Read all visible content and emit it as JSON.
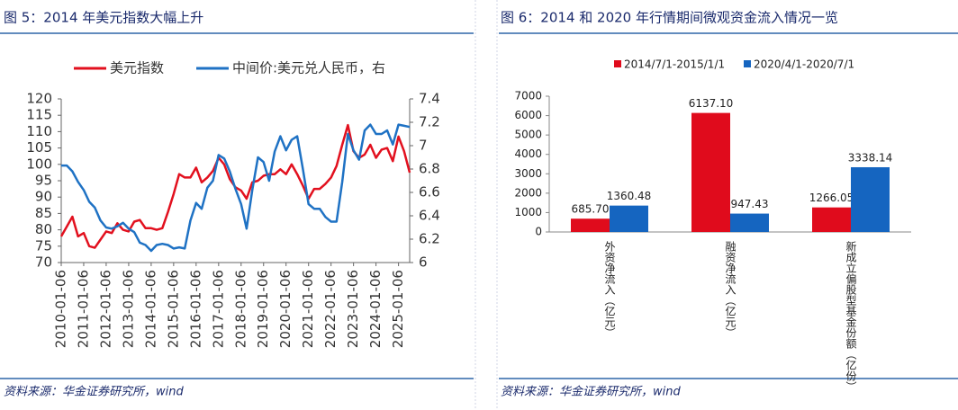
{
  "chart_data": [
    {
      "type": "line",
      "title": "图 5：2014 年美元指数大幅上升",
      "source": "资料来源：华金证券研究所，wind",
      "x": [
        "2010-01-06",
        "2010-04-06",
        "2010-07-06",
        "2010-10-06",
        "2011-01-06",
        "2011-04-06",
        "2011-07-06",
        "2011-10-06",
        "2012-01-06",
        "2012-04-06",
        "2012-07-06",
        "2012-10-06",
        "2013-01-06",
        "2013-04-06",
        "2013-07-06",
        "2013-10-06",
        "2014-01-06",
        "2014-04-06",
        "2014-07-06",
        "2014-10-06",
        "2015-01-06",
        "2015-04-06",
        "2015-07-06",
        "2015-10-06",
        "2016-01-06",
        "2016-04-06",
        "2016-07-06",
        "2016-10-06",
        "2017-01-06",
        "2017-04-06",
        "2017-07-06",
        "2017-10-06",
        "2018-01-06",
        "2018-04-06",
        "2018-07-06",
        "2018-10-06",
        "2019-01-06",
        "2019-04-06",
        "2019-07-06",
        "2019-10-06",
        "2020-01-06",
        "2020-04-06",
        "2020-07-06",
        "2020-10-06",
        "2021-01-06",
        "2021-04-06",
        "2021-07-06",
        "2021-10-06",
        "2022-01-06",
        "2022-04-06",
        "2022-07-06",
        "2022-10-06",
        "2023-01-06",
        "2023-04-06",
        "2023-07-06",
        "2023-10-06",
        "2024-01-06",
        "2024-04-06",
        "2024-07-06",
        "2024-10-06",
        "2025-01-06",
        "2025-04-06",
        "2025-07-06"
      ],
      "series": [
        {
          "name": "美元指数",
          "color": "#e2101e",
          "values": [
            78,
            81,
            84,
            78,
            79,
            75,
            74.5,
            77,
            79.5,
            79,
            82,
            80,
            79.5,
            82.5,
            83,
            80.5,
            80.5,
            80,
            80.5,
            85.5,
            91,
            97,
            96,
            96,
            99,
            94.5,
            96,
            98,
            102,
            100,
            95.5,
            93,
            92,
            89.5,
            94.5,
            95,
            96.5,
            97,
            97,
            98.5,
            97,
            100,
            97,
            93.5,
            89.5,
            92.5,
            92.5,
            94,
            96,
            99.5,
            106,
            112,
            104,
            102,
            103,
            106,
            102,
            104.5,
            105,
            101,
            108.5,
            104,
            97.5
          ]
        },
        {
          "name": "中间价:美元兑人民币，右",
          "color": "#1f72c4",
          "axis": "y2",
          "values": [
            6.83,
            6.83,
            6.78,
            6.69,
            6.62,
            6.52,
            6.47,
            6.36,
            6.3,
            6.29,
            6.31,
            6.34,
            6.29,
            6.26,
            6.17,
            6.15,
            6.1,
            6.15,
            6.16,
            6.15,
            6.12,
            6.13,
            6.12,
            6.36,
            6.51,
            6.46,
            6.64,
            6.7,
            6.92,
            6.89,
            6.78,
            6.63,
            6.5,
            6.29,
            6.62,
            6.9,
            6.86,
            6.7,
            6.95,
            7.08,
            6.96,
            7.05,
            7.08,
            6.8,
            6.5,
            6.46,
            6.46,
            6.39,
            6.35,
            6.35,
            6.69,
            7.1,
            6.96,
            6.88,
            7.13,
            7.18,
            7.1,
            7.1,
            7.13,
            7.01,
            7.18,
            7.17,
            7.16
          ]
        }
      ],
      "xlim": [
        "2010-01-06",
        "2025-07-06"
      ],
      "xticks": [
        "2010-01-06",
        "2011-01-06",
        "2012-01-06",
        "2013-01-06",
        "2014-01-06",
        "2015-01-06",
        "2016-01-06",
        "2017-01-06",
        "2018-01-06",
        "2019-01-06",
        "2020-01-06",
        "2021-01-06",
        "2022-01-06",
        "2023-01-06",
        "2024-01-06",
        "2025-01-06"
      ],
      "ylim": [
        70,
        120
      ],
      "yticks": [
        70,
        75,
        80,
        85,
        90,
        95,
        100,
        105,
        110,
        115,
        120
      ],
      "y2lim": [
        6,
        7.4
      ],
      "y2ticks": [
        6,
        6.2,
        6.4,
        6.6,
        6.8,
        7,
        7.2,
        7.4
      ],
      "legend": "top"
    },
    {
      "type": "bar",
      "title": "图 6：2014 和 2020 年行情期间微观资金流入情况一览",
      "source": "资料来源：华金证券研究所，wind",
      "categories": [
        "外资净流入（亿元）",
        "融资净流入（亿元）",
        "新成立偏股型基金份额（亿份）"
      ],
      "series": [
        {
          "name": "2014/7/1-2015/1/1",
          "color": "#e00b1c",
          "values": [
            685.7,
            6137.1,
            1266.05
          ],
          "value_labels": [
            "685.70",
            "6137.10",
            "1266.05"
          ]
        },
        {
          "name": "2020/4/1-2020/7/1",
          "color": "#1565c0",
          "values": [
            1360.48,
            947.43,
            3338.14
          ],
          "value_labels": [
            "1360.48",
            "947.43",
            "3338.14"
          ]
        }
      ],
      "ylim": [
        0,
        7000
      ],
      "yticks": [
        0,
        1000,
        2000,
        3000,
        4000,
        5000,
        6000,
        7000
      ],
      "legend": "top"
    }
  ]
}
